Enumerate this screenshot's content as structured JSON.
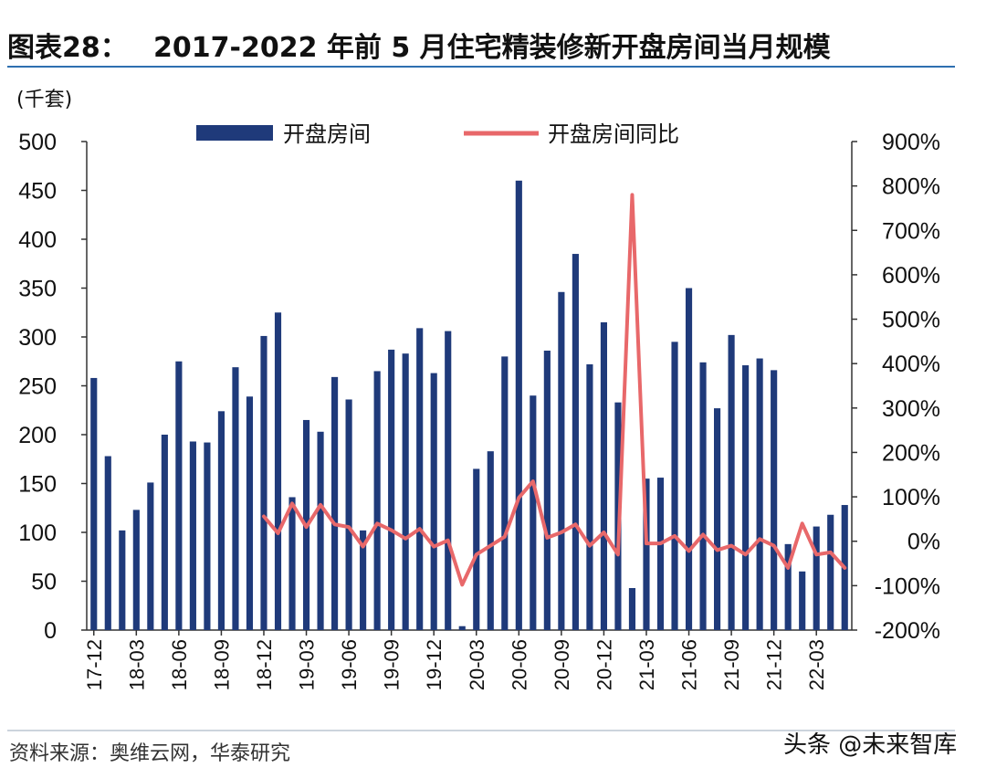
{
  "figure_label": "图表28：",
  "title": "2017-2022 年前 5 月住宅精装修新开盘房间当月规模",
  "unit_label": "(千套)",
  "source": "资料来源：奥维云网，华泰研究",
  "watermark": "头条 @未来智库",
  "colors": {
    "bar": "#1f3a7a",
    "line": "#e8686a",
    "rule": "#2e6fb0"
  },
  "chart_data": {
    "type": "bar+line",
    "categories": [
      "17-12",
      "18-01",
      "18-02",
      "18-03",
      "18-04",
      "18-05",
      "18-06",
      "18-07",
      "18-08",
      "18-09",
      "18-10",
      "18-11",
      "18-12",
      "19-01",
      "19-02",
      "19-03",
      "19-04",
      "19-05",
      "19-06",
      "19-07",
      "19-08",
      "19-09",
      "19-10",
      "19-11",
      "19-12",
      "20-01",
      "20-02",
      "20-03",
      "20-04",
      "20-05",
      "20-06",
      "20-07",
      "20-08",
      "20-09",
      "20-10",
      "20-11",
      "20-12",
      "21-01",
      "21-02",
      "21-03",
      "21-04",
      "21-05",
      "21-06",
      "21-07",
      "21-08",
      "21-09",
      "21-10",
      "21-11",
      "21-12",
      "22-01",
      "22-02",
      "22-03",
      "22-04",
      "22-05"
    ],
    "x_tick_labels": [
      "17-12",
      "18-03",
      "18-06",
      "18-09",
      "18-12",
      "19-03",
      "19-06",
      "19-09",
      "19-12",
      "20-03",
      "20-06",
      "20-09",
      "20-12",
      "21-03",
      "21-06",
      "21-09",
      "21-12",
      "22-03"
    ],
    "series": [
      {
        "name": "开盘房间",
        "type": "bar",
        "axis": "left",
        "values": [
          258,
          178,
          102,
          123,
          151,
          200,
          275,
          193,
          192,
          224,
          269,
          239,
          301,
          325,
          136,
          215,
          203,
          259,
          236,
          102,
          265,
          287,
          283,
          309,
          263,
          306,
          4,
          165,
          183,
          280,
          460,
          240,
          286,
          346,
          385,
          272,
          315,
          233,
          43,
          155,
          156,
          295,
          350,
          274,
          227,
          302,
          271,
          278,
          266,
          88,
          60,
          106,
          118,
          128
        ]
      },
      {
        "name": "开盘房间同比",
        "type": "line",
        "axis": "right",
        "unit": "%",
        "values": [
          null,
          null,
          null,
          null,
          null,
          null,
          null,
          null,
          null,
          null,
          null,
          null,
          56,
          18,
          85,
          32,
          82,
          38,
          32,
          -12,
          40,
          25,
          6,
          28,
          -12,
          2,
          -98,
          -30,
          -10,
          10,
          98,
          135,
          8,
          20,
          38,
          -10,
          20,
          -30,
          780,
          -5,
          -5,
          12,
          -22,
          15,
          -20,
          -10,
          -30,
          5,
          -10,
          -60,
          40,
          -30,
          -25,
          -60
        ]
      }
    ],
    "y_left": {
      "min": 0,
      "max": 500,
      "ticks": [
        "0",
        "50",
        "100",
        "150",
        "200",
        "250",
        "300",
        "350",
        "400",
        "450",
        "500"
      ]
    },
    "y_right": {
      "min": -200,
      "max": 900,
      "ticks": [
        "-200%",
        "-100%",
        "0%",
        "100%",
        "200%",
        "300%",
        "400%",
        "500%",
        "600%",
        "700%",
        "800%",
        "900%"
      ]
    },
    "legend_position": "top"
  }
}
